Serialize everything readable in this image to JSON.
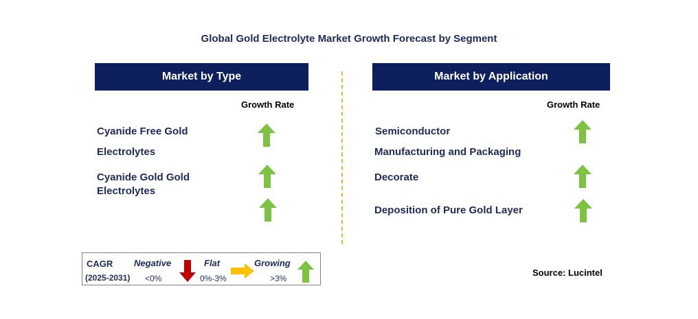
{
  "title": "Global Gold Electrolyte Market Growth Forecast by Segment",
  "left_panel": {
    "header": "Market by Type",
    "growth_label": "Growth Rate",
    "items": [
      {
        "line1": "Cyanide Free Gold",
        "line2": "Electrolytes",
        "trend": "growing"
      },
      {
        "line1": "Cyanide Gold Gold",
        "line2": "Electrolytes",
        "trend": "growing"
      },
      {
        "line1": "",
        "line2": "",
        "trend": "growing"
      }
    ]
  },
  "right_panel": {
    "header": "Market by Application",
    "growth_label": "Growth Rate",
    "items": [
      {
        "line1": "Semiconductor",
        "line2": "Manufacturing and Packaging",
        "trend": "growing"
      },
      {
        "line1": "Decorate",
        "trend": "growing"
      },
      {
        "line1": "Deposition of Pure Gold Layer",
        "trend": "growing"
      }
    ]
  },
  "legend": {
    "cagr_label": "CAGR",
    "period": "(2025-2031)",
    "negative_label": "Negative",
    "negative_range": "<0%",
    "flat_label": "Flat",
    "flat_range": "0%-3%",
    "growing_label": "Growing",
    "growing_range": ">3%"
  },
  "source": "Source: Lucintel",
  "colors": {
    "header_bg": "#0d1f5c",
    "growing_arrow": "#7dc242",
    "negative_arrow": "#c00000",
    "flat_arrow": "#ffc000",
    "divider": "#f0b43c"
  }
}
